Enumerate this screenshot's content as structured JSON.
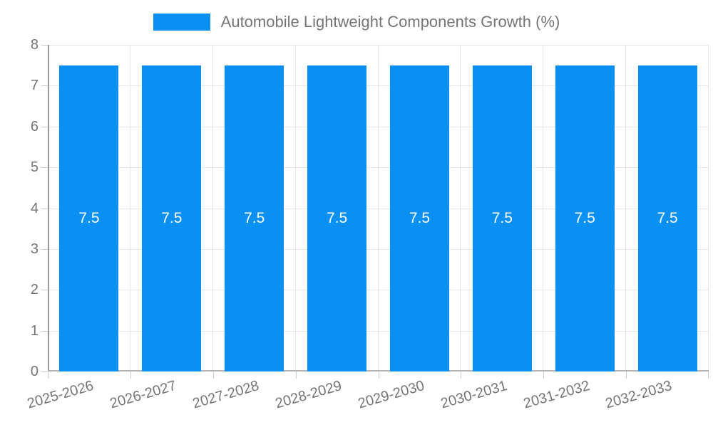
{
  "legend": {
    "position": "top"
  },
  "chart_data": {
    "type": "bar",
    "title": "",
    "series_name": "Automobile Lightweight Components Growth (%)",
    "categories": [
      "2025-2026",
      "2026-2027",
      "2027-2028",
      "2028-2029",
      "2029-2030",
      "2030-2031",
      "2031-2032",
      "2032-2033"
    ],
    "values": [
      7.5,
      7.5,
      7.5,
      7.5,
      7.5,
      7.5,
      7.5,
      7.5
    ],
    "value_labels": [
      "7.5",
      "7.5",
      "7.5",
      "7.5",
      "7.5",
      "7.5",
      "7.5",
      "7.5"
    ],
    "xlabel": "",
    "ylabel": "",
    "ylim": [
      0,
      8
    ],
    "yticks": [
      0,
      1,
      2,
      3,
      4,
      5,
      6,
      7,
      8
    ],
    "grid": true,
    "legend_position": "top",
    "xlabel_rotation_deg": -16,
    "colors": {
      "bar": "#0a8ff2",
      "value_label": "#ffffff",
      "axis_text": "#757575",
      "legend_text": "#757575",
      "gridline": "#e6e6e6",
      "axis_line": "#9a9a9a",
      "tick": "#cccccc",
      "background": "#ffffff"
    }
  }
}
